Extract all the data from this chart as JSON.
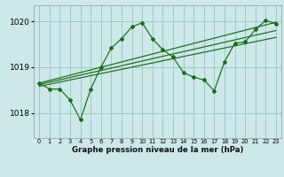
{
  "title": "Graphe pression niveau de la mer (hPa)",
  "background_color": "#cce8e8",
  "grid_color": "#a0c8c8",
  "line_color": "#1a6b1a",
  "xlim": [
    -0.5,
    23.5
  ],
  "ylim": [
    1017.45,
    1020.35
  ],
  "yticks": [
    1018,
    1019,
    1020
  ],
  "xtick_labels": [
    "0",
    "1",
    "2",
    "3",
    "4",
    "5",
    "6",
    "7",
    "8",
    "9",
    "10",
    "11",
    "12",
    "13",
    "14",
    "15",
    "16",
    "17",
    "18",
    "19",
    "20",
    "21",
    "22",
    "23"
  ],
  "xticks": [
    0,
    1,
    2,
    3,
    4,
    5,
    6,
    7,
    8,
    9,
    10,
    11,
    12,
    13,
    14,
    15,
    16,
    17,
    18,
    19,
    20,
    21,
    22,
    23
  ],
  "main_series": [
    [
      0,
      1018.65
    ],
    [
      1,
      1018.52
    ],
    [
      2,
      1018.52
    ],
    [
      3,
      1018.28
    ],
    [
      4,
      1017.85
    ],
    [
      5,
      1018.52
    ],
    [
      6,
      1019.0
    ],
    [
      7,
      1019.42
    ],
    [
      8,
      1019.62
    ],
    [
      9,
      1019.88
    ],
    [
      10,
      1019.97
    ],
    [
      11,
      1019.62
    ],
    [
      12,
      1019.38
    ],
    [
      13,
      1019.22
    ],
    [
      14,
      1018.88
    ],
    [
      15,
      1018.78
    ],
    [
      16,
      1018.72
    ],
    [
      17,
      1018.48
    ],
    [
      18,
      1019.12
    ],
    [
      19,
      1019.52
    ],
    [
      20,
      1019.55
    ],
    [
      21,
      1019.82
    ],
    [
      22,
      1020.02
    ],
    [
      23,
      1019.95
    ]
  ],
  "trend_lines": [
    [
      [
        0,
        1018.58
      ],
      [
        23,
        1019.65
      ]
    ],
    [
      [
        0,
        1018.62
      ],
      [
        23,
        1019.8
      ]
    ],
    [
      [
        0,
        1018.65
      ],
      [
        23,
        1019.98
      ]
    ]
  ],
  "figsize": [
    3.2,
    2.0
  ],
  "dpi": 100
}
